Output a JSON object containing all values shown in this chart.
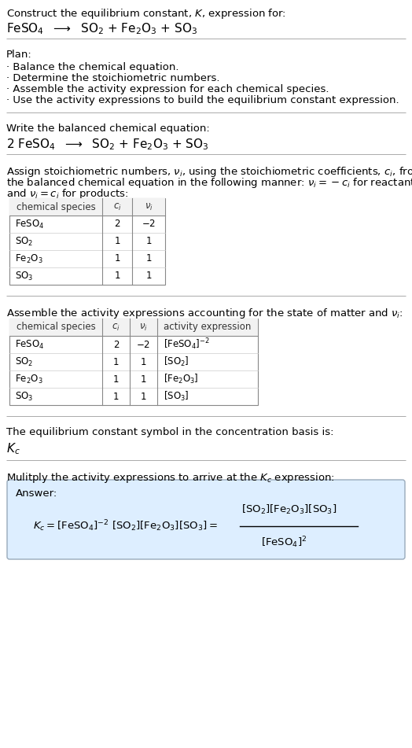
{
  "title_line1": "Construct the equilibrium constant, $K$, expression for:",
  "title_line2": "FeSO$_4$  $\\longrightarrow$  SO$_2$ + Fe$_2$O$_3$ + SO$_3$",
  "plan_header": "Plan:",
  "plan_items": [
    "· Balance the chemical equation.",
    "· Determine the stoichiometric numbers.",
    "· Assemble the activity expression for each chemical species.",
    "· Use the activity expressions to build the equilibrium constant expression."
  ],
  "balanced_header": "Write the balanced chemical equation:",
  "balanced_eq": "2 FeSO$_4$  $\\longrightarrow$  SO$_2$ + Fe$_2$O$_3$ + SO$_3$",
  "stoich_line1": "Assign stoichiometric numbers, $\\nu_i$, using the stoichiometric coefficients, $c_i$, from",
  "stoich_line2": "the balanced chemical equation in the following manner: $\\nu_i = -c_i$ for reactants",
  "stoich_line3": "and $\\nu_i = c_i$ for products:",
  "table1_headers": [
    "chemical species",
    "$c_i$",
    "$\\nu_i$"
  ],
  "table1_rows": [
    [
      "FeSO$_4$",
      "2",
      "$-2$"
    ],
    [
      "SO$_2$",
      "1",
      "1"
    ],
    [
      "Fe$_2$O$_3$",
      "1",
      "1"
    ],
    [
      "SO$_3$",
      "1",
      "1"
    ]
  ],
  "activity_header": "Assemble the activity expressions accounting for the state of matter and $\\nu_i$:",
  "table2_headers": [
    "chemical species",
    "$c_i$",
    "$\\nu_i$",
    "activity expression"
  ],
  "table2_rows": [
    [
      "FeSO$_4$",
      "2",
      "$-2$",
      "[FeSO$_4$]$^{-2}$"
    ],
    [
      "SO$_2$",
      "1",
      "1",
      "[SO$_2$]"
    ],
    [
      "Fe$_2$O$_3$",
      "1",
      "1",
      "[Fe$_2$O$_3$]"
    ],
    [
      "SO$_3$",
      "1",
      "1",
      "[SO$_3$]"
    ]
  ],
  "kc_header": "The equilibrium constant symbol in the concentration basis is:",
  "kc_symbol": "$K_c$",
  "multiply_header": "Mulitply the activity expressions to arrive at the $K_c$ expression:",
  "answer_label": "Answer:",
  "bg_color": "#ffffff",
  "text_color": "#000000",
  "table_header_bg": "#f2f2f2",
  "answer_bg_color": "#ddeeff",
  "answer_border_color": "#99aabb",
  "fig_width": 5.24,
  "fig_height": 9.51,
  "dpi": 100
}
